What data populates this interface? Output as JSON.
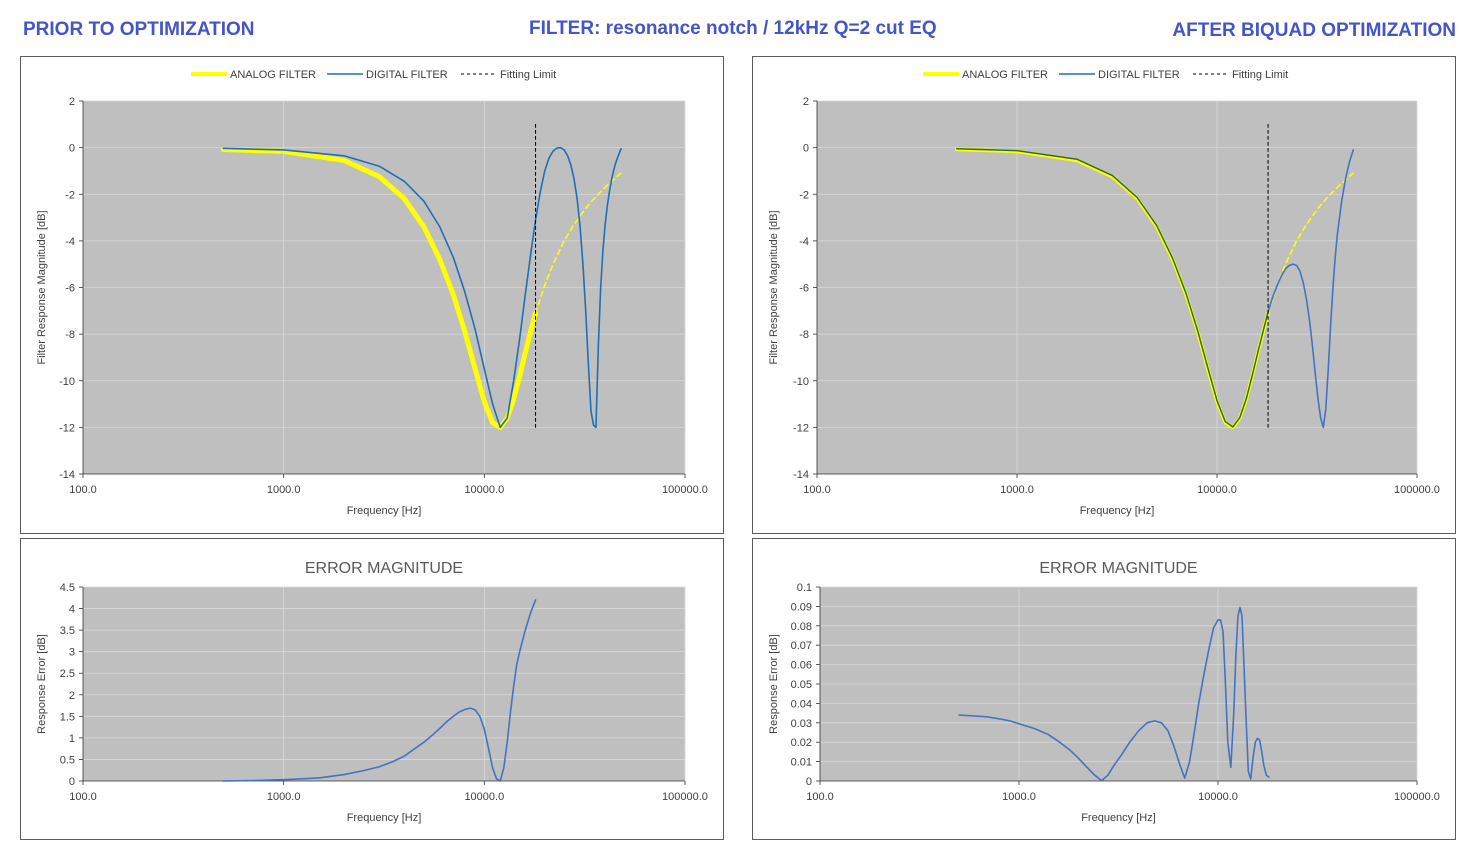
{
  "header": {
    "left": "PRIOR TO OPTIMIZATION",
    "center": "FILTER: resonance notch / 12kHz Q=2 cut EQ",
    "right": "AFTER BIQUAD OPTIMIZATION"
  },
  "colors": {
    "analog": "#ffff00",
    "digital": "#1f6fb5",
    "error": "#4472c4",
    "plot_bg": "#bfbfbf",
    "grid": "#d9d9d9",
    "limit": "#000000"
  },
  "chart_data": [
    {
      "id": "tl",
      "type": "line",
      "title": "",
      "xlabel": "Frequency [Hz]",
      "ylabel": "Filter Response Magnitude [dB]",
      "xscale": "log",
      "xlim": [
        100,
        100000
      ],
      "ylim": [
        -14,
        2
      ],
      "xticks": [
        100,
        1000,
        10000,
        100000
      ],
      "xtick_labels": [
        "100.0",
        "1000.0",
        "10000.0",
        "100000.0"
      ],
      "yticks": [
        -14,
        -12,
        -10,
        -8,
        -6,
        -4,
        -2,
        0,
        2
      ],
      "ytick_labels": [
        "-14",
        "-12",
        "-10",
        "-8",
        "-6",
        "-4",
        "-2",
        "0",
        "2"
      ],
      "grid": true,
      "legend_position": "top-center",
      "legend": [
        "ANALOG FILTER",
        "DIGITAL FILTER",
        "Fitting Limit"
      ],
      "series": [
        {
          "name": "ANALOG FILTER",
          "style": "thick-yellow",
          "x": [
            500,
            1000,
            2000,
            3000,
            4000,
            5000,
            6000,
            7000,
            8000,
            9000,
            10000,
            11000,
            12000,
            13000,
            14000,
            15000,
            16000,
            17000,
            18000
          ],
          "y": [
            -0.08,
            -0.16,
            -0.55,
            -1.25,
            -2.2,
            -3.4,
            -4.8,
            -6.3,
            -7.9,
            -9.5,
            -10.9,
            -11.8,
            -12.0,
            -11.6,
            -10.8,
            -9.8,
            -8.8,
            -7.9,
            -7.1
          ]
        },
        {
          "name": "ANALOG FILTER (beyond limit)",
          "style": "dashed-yellow",
          "x": [
            18000,
            20000,
            22000,
            25000,
            28000,
            32000,
            36000,
            40000,
            45000,
            48000
          ],
          "y": [
            -7.1,
            -5.9,
            -5.0,
            -4.0,
            -3.3,
            -2.6,
            -2.1,
            -1.7,
            -1.3,
            -1.1
          ]
        },
        {
          "name": "DIGITAL FILTER",
          "style": "blue",
          "x": [
            500,
            1000,
            2000,
            3000,
            4000,
            5000,
            6000,
            7000,
            8000,
            9000,
            10000,
            11000,
            12000,
            13000,
            14000,
            15000,
            16000,
            17000,
            18000,
            19000,
            20000,
            21000,
            22000,
            23000,
            24000,
            25000,
            26000,
            27000,
            28000,
            29000,
            30000,
            31000,
            32000,
            33000,
            34000,
            35000,
            36000,
            37000,
            38000,
            39000,
            40000,
            41000,
            42000,
            43000,
            44000,
            45000,
            46000,
            47000,
            48000
          ],
          "y": [
            -0.03,
            -0.1,
            -0.35,
            -0.8,
            -1.45,
            -2.3,
            -3.4,
            -4.7,
            -6.2,
            -7.8,
            -9.5,
            -11.0,
            -12.0,
            -11.6,
            -10.0,
            -8.2,
            -6.3,
            -4.6,
            -3.1,
            -1.9,
            -1.0,
            -0.45,
            -0.15,
            -0.02,
            0.0,
            -0.1,
            -0.35,
            -0.75,
            -1.35,
            -2.2,
            -3.4,
            -5.0,
            -7.0,
            -9.3,
            -11.3,
            -11.9,
            -12.0,
            -8.5,
            -6.0,
            -4.4,
            -3.3,
            -2.5,
            -1.9,
            -1.4,
            -1.0,
            -0.7,
            -0.45,
            -0.25,
            -0.05
          ]
        },
        {
          "name": "Fitting Limit",
          "style": "dashed-black",
          "x": [
            18000,
            18000
          ],
          "y": [
            -12,
            1
          ]
        }
      ]
    },
    {
      "id": "tr",
      "type": "line",
      "title": "",
      "xlabel": "Frequency [Hz]",
      "ylabel": "Filter Response Magnitude [dB]",
      "xscale": "log",
      "xlim": [
        100,
        100000
      ],
      "ylim": [
        -14,
        2
      ],
      "xticks": [
        100,
        1000,
        10000,
        100000
      ],
      "xtick_labels": [
        "100.0",
        "1000.0",
        "10000.0",
        "100000.0"
      ],
      "yticks": [
        -14,
        -12,
        -10,
        -8,
        -6,
        -4,
        -2,
        0,
        2
      ],
      "ytick_labels": [
        "-14",
        "-12",
        "-10",
        "-8",
        "-6",
        "-4",
        "-2",
        "0",
        "2"
      ],
      "grid": true,
      "legend_position": "top-center",
      "legend": [
        "ANALOG FILTER",
        "DIGITAL FILTER",
        "Fitting Limit"
      ],
      "series": [
        {
          "name": "ANALOG FILTER",
          "style": "medium-yellow",
          "x": [
            500,
            1000,
            2000,
            3000,
            4000,
            5000,
            6000,
            7000,
            8000,
            9000,
            10000,
            11000,
            12000,
            13000,
            14000,
            15000,
            16000,
            17000,
            18000
          ],
          "y": [
            -0.08,
            -0.16,
            -0.55,
            -1.25,
            -2.2,
            -3.4,
            -4.8,
            -6.3,
            -7.9,
            -9.5,
            -10.9,
            -11.8,
            -12.0,
            -11.6,
            -10.8,
            -9.8,
            -8.8,
            -7.9,
            -7.1
          ]
        },
        {
          "name": "ANALOG FILTER (beyond limit)",
          "style": "dashed-yellow",
          "x": [
            18000,
            20000,
            22000,
            25000,
            28000,
            32000,
            36000,
            40000,
            45000,
            48000
          ],
          "y": [
            -7.1,
            -5.9,
            -5.0,
            -4.0,
            -3.3,
            -2.6,
            -2.1,
            -1.7,
            -1.3,
            -1.1
          ]
        },
        {
          "name": "DIGITAL FILTER",
          "style": "thin-green",
          "x": [
            500,
            1000,
            2000,
            3000,
            4000,
            5000,
            6000,
            7000,
            8000,
            9000,
            10000,
            11000,
            12000,
            13000,
            14000,
            15000,
            16000,
            17000,
            18000
          ],
          "y": [
            -0.05,
            -0.13,
            -0.5,
            -1.2,
            -2.15,
            -3.35,
            -4.75,
            -6.25,
            -7.85,
            -9.45,
            -10.85,
            -11.75,
            -11.98,
            -11.58,
            -10.78,
            -9.78,
            -8.78,
            -7.88,
            -7.05
          ]
        },
        {
          "name": "DIGITAL FILTER (beyond limit)",
          "style": "blue",
          "x": [
            18000,
            19000,
            20000,
            21000,
            22000,
            23000,
            24000,
            25000,
            26000,
            27000,
            28000,
            29000,
            30000,
            31000,
            32000,
            33000,
            34000,
            35000,
            36000,
            37000,
            38000,
            39000,
            40000,
            42000,
            44000,
            46000,
            48000
          ],
          "y": [
            -7.05,
            -6.4,
            -5.9,
            -5.5,
            -5.2,
            -5.05,
            -5.0,
            -5.05,
            -5.3,
            -5.8,
            -6.5,
            -7.4,
            -8.5,
            -9.7,
            -10.8,
            -11.6,
            -12.0,
            -11.2,
            -9.5,
            -7.6,
            -6.0,
            -4.7,
            -3.7,
            -2.3,
            -1.3,
            -0.6,
            -0.1
          ]
        },
        {
          "name": "Fitting Limit",
          "style": "dashed-black",
          "x": [
            18000,
            18000
          ],
          "y": [
            -12,
            1
          ]
        }
      ]
    },
    {
      "id": "bl",
      "type": "line",
      "title": "ERROR MAGNITUDE",
      "xlabel": "Frequency [Hz]",
      "ylabel": "Response Error [dB]",
      "xscale": "log",
      "xlim": [
        100,
        100000
      ],
      "ylim": [
        0,
        4.5
      ],
      "xticks": [
        100,
        1000,
        10000,
        100000
      ],
      "xtick_labels": [
        "100.0",
        "1000.0",
        "10000.0",
        "100000.0"
      ],
      "yticks": [
        0,
        0.5,
        1,
        1.5,
        2,
        2.5,
        3,
        3.5,
        4,
        4.5
      ],
      "ytick_labels": [
        "0",
        "0.5",
        "1",
        "1.5",
        "2",
        "2.5",
        "3",
        "3.5",
        "4",
        "4.5"
      ],
      "grid": true,
      "series": [
        {
          "name": "",
          "style": "blue",
          "x": [
            500,
            700,
            1000,
            1500,
            2000,
            2500,
            3000,
            3500,
            4000,
            4500,
            5000,
            5500,
            6000,
            6500,
            7000,
            7500,
            8000,
            8500,
            9000,
            9500,
            10000,
            10500,
            11000,
            11500,
            12000,
            12500,
            13000,
            13500,
            14000,
            14500,
            15000,
            16000,
            17000,
            18000
          ],
          "y": [
            0.0,
            0.01,
            0.03,
            0.07,
            0.15,
            0.24,
            0.33,
            0.45,
            0.58,
            0.75,
            0.9,
            1.06,
            1.22,
            1.38,
            1.5,
            1.6,
            1.66,
            1.69,
            1.65,
            1.5,
            1.2,
            0.75,
            0.3,
            0.05,
            0.0,
            0.3,
            0.9,
            1.6,
            2.2,
            2.7,
            3.0,
            3.5,
            3.9,
            4.2
          ]
        }
      ]
    },
    {
      "id": "br",
      "type": "line",
      "title": "ERROR MAGNITUDE",
      "xlabel": "Frequency [Hz]",
      "ylabel": "Response Error [dB]",
      "xscale": "log",
      "xlim": [
        100,
        100000
      ],
      "ylim": [
        0,
        0.1
      ],
      "xticks": [
        100,
        1000,
        10000,
        100000
      ],
      "xtick_labels": [
        "100.0",
        "1000.0",
        "10000.0",
        "100000.0"
      ],
      "yticks": [
        0,
        0.01,
        0.02,
        0.03,
        0.04,
        0.05,
        0.06,
        0.07,
        0.08,
        0.09,
        0.1
      ],
      "ytick_labels": [
        "0",
        "0.01",
        "0.02",
        "0.03",
        "0.04",
        "0.05",
        "0.06",
        "0.07",
        "0.08",
        "0.09",
        "0.1"
      ],
      "grid": true,
      "series": [
        {
          "name": "",
          "style": "blue",
          "x": [
            500,
            600,
            700,
            800,
            900,
            1000,
            1200,
            1400,
            1600,
            1800,
            2000,
            2200,
            2400,
            2600,
            2800,
            3000,
            3300,
            3600,
            4000,
            4400,
            4800,
            5200,
            5600,
            6000,
            6400,
            6800,
            7200,
            7600,
            8000,
            8500,
            9000,
            9500,
            10000,
            10300,
            10600,
            10900,
            11200,
            11600,
            12000,
            12300,
            12600,
            12900,
            13200,
            13500,
            13800,
            14200,
            14600,
            15000,
            15400,
            15800,
            16200,
            16600,
            17000,
            17500,
            18000
          ],
          "y": [
            0.034,
            0.0335,
            0.033,
            0.032,
            0.031,
            0.0295,
            0.027,
            0.024,
            0.02,
            0.016,
            0.0115,
            0.007,
            0.003,
            0.0002,
            0.003,
            0.008,
            0.014,
            0.02,
            0.026,
            0.03,
            0.031,
            0.03,
            0.026,
            0.018,
            0.009,
            0.0015,
            0.01,
            0.025,
            0.04,
            0.055,
            0.068,
            0.079,
            0.083,
            0.083,
            0.077,
            0.05,
            0.02,
            0.007,
            0.035,
            0.065,
            0.085,
            0.0895,
            0.085,
            0.06,
            0.035,
            0.005,
            0.001,
            0.012,
            0.02,
            0.022,
            0.021,
            0.015,
            0.008,
            0.003,
            0.002
          ]
        }
      ]
    }
  ]
}
